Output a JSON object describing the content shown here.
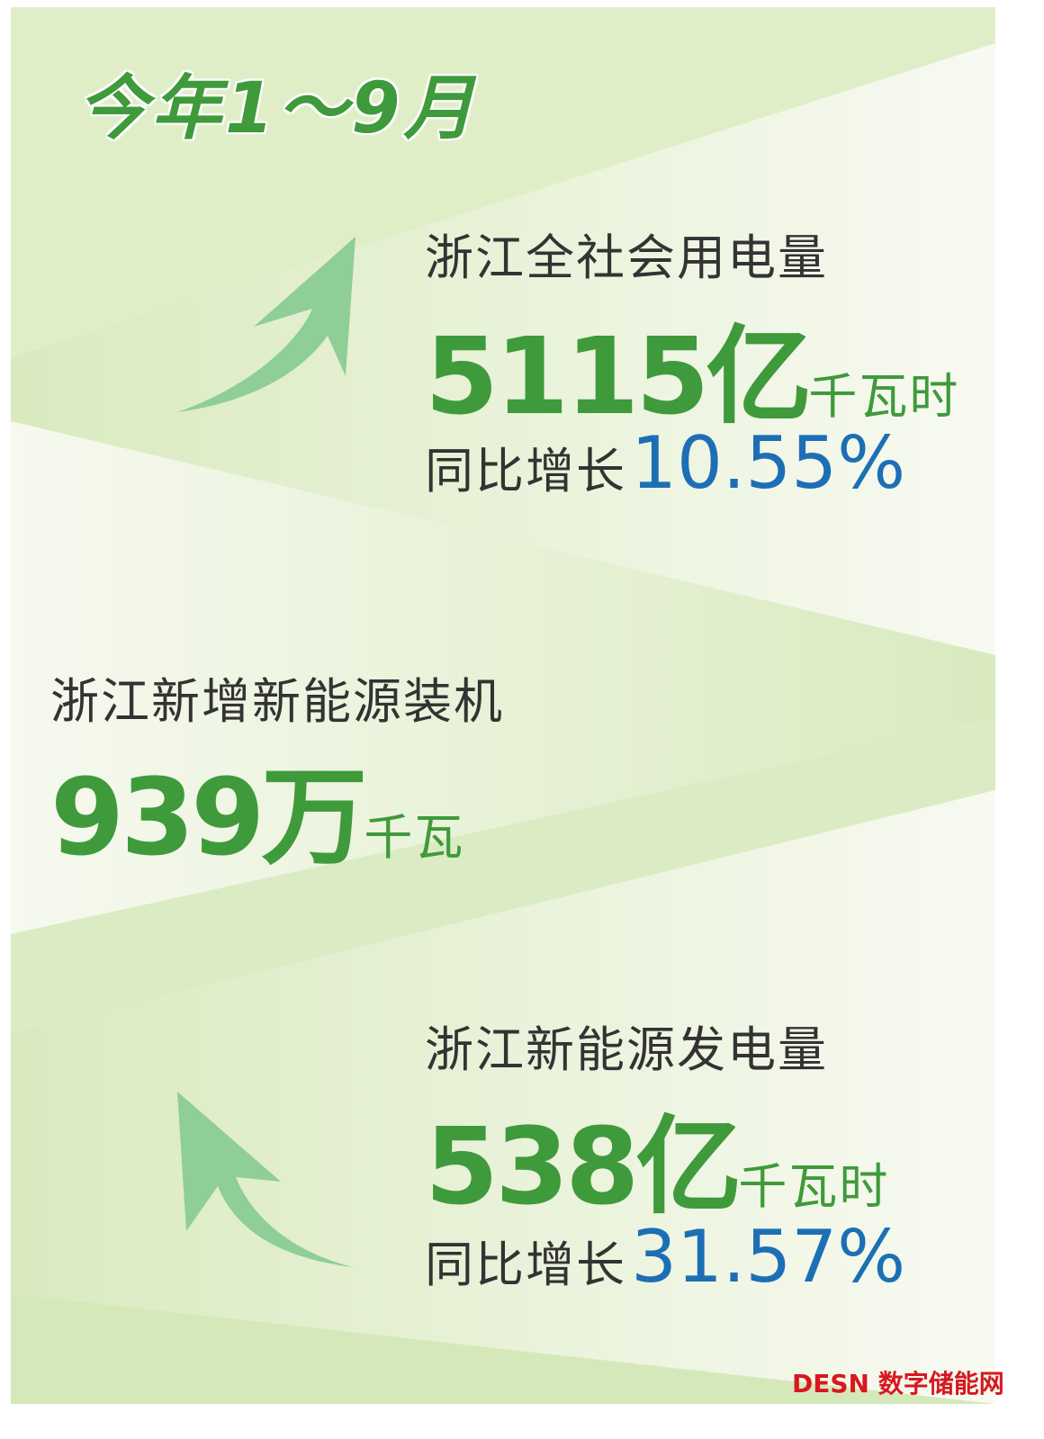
{
  "title": "今年1～9月",
  "stats": [
    {
      "label": "浙江全社会用电量",
      "value": "5115亿",
      "unit": "千瓦时",
      "yoy_label": "同比增长",
      "yoy_value": "10.55%",
      "arrow": "arrow-up-right"
    },
    {
      "label": "浙江新增新能源装机",
      "value": "939万",
      "unit": "千瓦"
    },
    {
      "label": "浙江新能源发电量",
      "value": "538亿",
      "unit": "千瓦时",
      "yoy_label": "同比增长",
      "yoy_value": "31.57%",
      "arrow": "arrow-up-left"
    }
  ],
  "watermark": "DESN 数字储能网",
  "colors": {
    "green": "#3f9a3b",
    "blue": "#1c6fb5",
    "background": "#e3efcc",
    "arrow": "#8fce97",
    "watermark": "#d7181f"
  }
}
